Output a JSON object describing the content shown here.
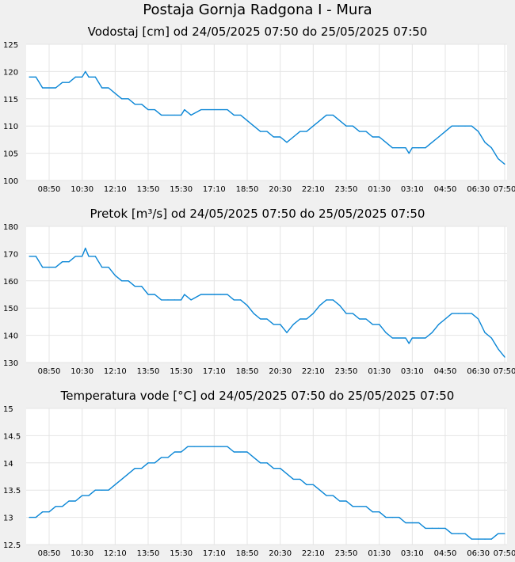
{
  "page": {
    "title": "Postaja Gornja Radgona I - Mura"
  },
  "colors": {
    "line": "#0a86d6",
    "grid": "#e4e4e4",
    "plot_bg": "#ffffff",
    "page_bg": "#f0f0f0"
  },
  "chart_data": [
    {
      "type": "line",
      "title": "Vodostaj [cm] od 24/05/2025 07:50 do 25/05/2025 07:50",
      "xlabel": "",
      "ylabel": "",
      "ylim": [
        100,
        125
      ],
      "yticks": [
        100,
        105,
        110,
        115,
        120,
        125
      ],
      "ytick_labels": [
        "100",
        "105",
        "110",
        "115",
        "120",
        "125"
      ],
      "xticks": [
        "08:50",
        "10:30",
        "12:10",
        "13:50",
        "15:30",
        "17:10",
        "18:50",
        "20:30",
        "22:10",
        "23:50",
        "01:30",
        "03:10",
        "04:50",
        "06:30",
        "07:50"
      ],
      "grid": true,
      "series": [
        {
          "x": [
            "07:50",
            "08:10",
            "08:30",
            "08:50",
            "09:10",
            "09:30",
            "09:50",
            "10:10",
            "10:30",
            "10:40",
            "10:50",
            "11:10",
            "11:30",
            "11:50",
            "12:10",
            "12:30",
            "12:50",
            "13:10",
            "13:30",
            "13:50",
            "14:10",
            "14:30",
            "14:50",
            "15:10",
            "15:30",
            "15:40",
            "16:00",
            "16:30",
            "17:00",
            "17:10",
            "17:30",
            "17:50",
            "18:10",
            "18:30",
            "18:50",
            "19:10",
            "19:30",
            "19:50",
            "20:10",
            "20:30",
            "20:50",
            "21:10",
            "21:30",
            "21:50",
            "22:10",
            "22:30",
            "22:50",
            "23:10",
            "23:30",
            "23:50",
            "00:10",
            "00:30",
            "00:50",
            "01:10",
            "01:30",
            "01:50",
            "02:10",
            "02:30",
            "02:50",
            "03:00",
            "03:10",
            "03:30",
            "03:50",
            "04:10",
            "04:30",
            "04:50",
            "05:10",
            "05:30",
            "05:50",
            "06:10",
            "06:30",
            "06:50",
            "07:10",
            "07:30",
            "07:50"
          ],
          "values": [
            119,
            119,
            117,
            117,
            117,
            118,
            118,
            119,
            119,
            120,
            119,
            119,
            117,
            117,
            116,
            115,
            115,
            114,
            114,
            113,
            113,
            112,
            112,
            112,
            112,
            113,
            112,
            113,
            113,
            113,
            113,
            113,
            112,
            112,
            111,
            110,
            109,
            109,
            108,
            108,
            107,
            108,
            109,
            109,
            110,
            111,
            112,
            112,
            111,
            110,
            110,
            109,
            109,
            108,
            108,
            107,
            106,
            106,
            106,
            105,
            106,
            106,
            106,
            107,
            108,
            109,
            110,
            110,
            110,
            110,
            109,
            107,
            106,
            104,
            103
          ]
        }
      ]
    },
    {
      "type": "line",
      "title": "Pretok [m³/s] od 24/05/2025 07:50 do 25/05/2025 07:50",
      "xlabel": "",
      "ylabel": "",
      "ylim": [
        130,
        180
      ],
      "yticks": [
        130,
        140,
        150,
        160,
        170,
        180
      ],
      "ytick_labels": [
        "130",
        "140",
        "150",
        "160",
        "170",
        "180"
      ],
      "xticks": [
        "08:50",
        "10:30",
        "12:10",
        "13:50",
        "15:30",
        "17:10",
        "18:50",
        "20:30",
        "22:10",
        "23:50",
        "01:30",
        "03:10",
        "04:50",
        "06:30",
        "07:50"
      ],
      "grid": true,
      "series": [
        {
          "x": [
            "07:50",
            "08:10",
            "08:30",
            "08:50",
            "09:10",
            "09:30",
            "09:50",
            "10:10",
            "10:30",
            "10:40",
            "10:50",
            "11:10",
            "11:30",
            "11:50",
            "12:10",
            "12:30",
            "12:50",
            "13:10",
            "13:30",
            "13:50",
            "14:10",
            "14:30",
            "14:50",
            "15:10",
            "15:30",
            "15:40",
            "16:00",
            "16:30",
            "17:00",
            "17:10",
            "17:30",
            "17:50",
            "18:10",
            "18:30",
            "18:50",
            "19:10",
            "19:30",
            "19:50",
            "20:10",
            "20:30",
            "20:50",
            "21:10",
            "21:30",
            "21:50",
            "22:10",
            "22:30",
            "22:50",
            "23:10",
            "23:30",
            "23:50",
            "00:10",
            "00:30",
            "00:50",
            "01:10",
            "01:30",
            "01:50",
            "02:10",
            "02:30",
            "02:50",
            "03:00",
            "03:10",
            "03:30",
            "03:50",
            "04:10",
            "04:30",
            "04:50",
            "05:10",
            "05:30",
            "05:50",
            "06:10",
            "06:30",
            "06:50",
            "07:10",
            "07:30",
            "07:50"
          ],
          "values": [
            169,
            169,
            165,
            165,
            165,
            167,
            167,
            169,
            169,
            172,
            169,
            169,
            165,
            165,
            162,
            160,
            160,
            158,
            158,
            155,
            155,
            153,
            153,
            153,
            153,
            155,
            153,
            155,
            155,
            155,
            155,
            155,
            153,
            153,
            151,
            148,
            146,
            146,
            144,
            144,
            141,
            144,
            146,
            146,
            148,
            151,
            153,
            153,
            151,
            148,
            148,
            146,
            146,
            144,
            144,
            141,
            139,
            139,
            139,
            137,
            139,
            139,
            139,
            141,
            144,
            146,
            148,
            148,
            148,
            148,
            146,
            141,
            139,
            135,
            132
          ]
        }
      ]
    },
    {
      "type": "line",
      "title": "Temperatura vode [°C] od 24/05/2025 07:50 do 25/05/2025 07:50",
      "xlabel": "",
      "ylabel": "",
      "ylim": [
        12.5,
        15
      ],
      "yticks": [
        12.5,
        13,
        13.5,
        14,
        14.5,
        15
      ],
      "ytick_labels": [
        "12.5",
        "13",
        "13.5",
        "14",
        "14.5",
        "15"
      ],
      "xticks": [
        "08:50",
        "10:30",
        "12:10",
        "13:50",
        "15:30",
        "17:10",
        "18:50",
        "20:30",
        "22:10",
        "23:50",
        "01:30",
        "03:10",
        "04:50",
        "06:30",
        "07:50"
      ],
      "grid": true,
      "series": [
        {
          "x": [
            "07:50",
            "08:10",
            "08:30",
            "08:50",
            "09:10",
            "09:30",
            "09:50",
            "10:10",
            "10:30",
            "10:50",
            "11:10",
            "11:30",
            "11:50",
            "12:10",
            "12:30",
            "12:50",
            "13:10",
            "13:30",
            "13:50",
            "14:10",
            "14:30",
            "14:50",
            "15:10",
            "15:30",
            "15:50",
            "16:10",
            "16:30",
            "16:50",
            "17:10",
            "17:30",
            "17:50",
            "18:10",
            "18:30",
            "18:50",
            "19:10",
            "19:30",
            "19:50",
            "20:10",
            "20:30",
            "20:50",
            "21:10",
            "21:30",
            "21:50",
            "22:10",
            "22:30",
            "22:50",
            "23:10",
            "23:30",
            "23:50",
            "00:10",
            "00:30",
            "00:50",
            "01:10",
            "01:30",
            "01:50",
            "02:10",
            "02:30",
            "02:50",
            "03:10",
            "03:30",
            "03:50",
            "04:10",
            "04:30",
            "04:50",
            "05:10",
            "05:30",
            "05:50",
            "06:10",
            "06:30",
            "06:50",
            "07:10",
            "07:30",
            "07:50"
          ],
          "values": [
            13.0,
            13.0,
            13.1,
            13.1,
            13.2,
            13.2,
            13.3,
            13.3,
            13.4,
            13.4,
            13.5,
            13.5,
            13.5,
            13.6,
            13.7,
            13.8,
            13.9,
            13.9,
            14.0,
            14.0,
            14.1,
            14.1,
            14.2,
            14.2,
            14.3,
            14.3,
            14.3,
            14.3,
            14.3,
            14.3,
            14.3,
            14.2,
            14.2,
            14.2,
            14.1,
            14.0,
            14.0,
            13.9,
            13.9,
            13.8,
            13.7,
            13.7,
            13.6,
            13.6,
            13.5,
            13.4,
            13.4,
            13.3,
            13.3,
            13.2,
            13.2,
            13.2,
            13.1,
            13.1,
            13.0,
            13.0,
            13.0,
            12.9,
            12.9,
            12.9,
            12.8,
            12.8,
            12.8,
            12.8,
            12.7,
            12.7,
            12.7,
            12.6,
            12.6,
            12.6,
            12.6,
            12.7,
            12.7
          ]
        }
      ]
    }
  ]
}
